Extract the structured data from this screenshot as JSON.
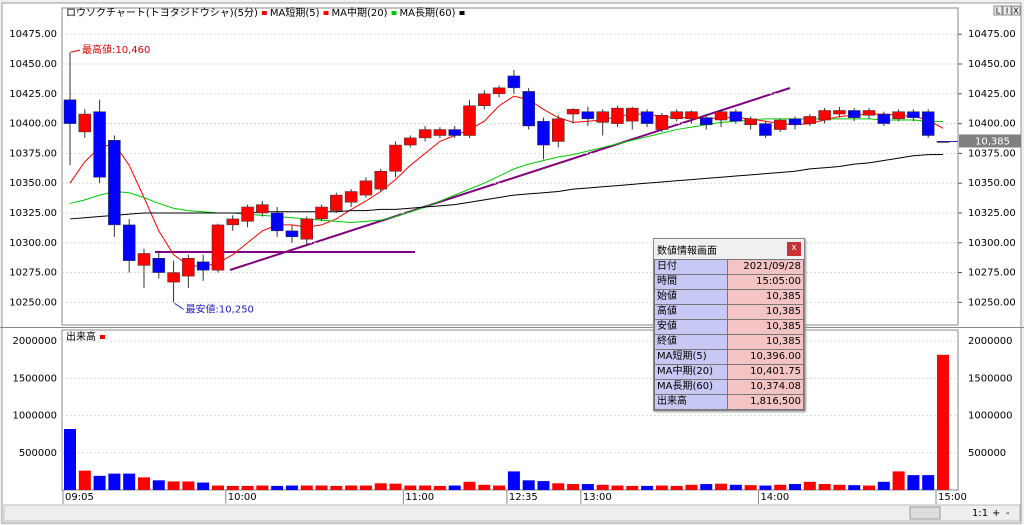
{
  "chart_data": [
    {
      "type": "candlestick",
      "title": "ロウソクチャート(トヨタジドウシャ)(5分)",
      "categories": [
        "09:05",
        null,
        null,
        null,
        null,
        null,
        null,
        null,
        null,
        null,
        null,
        "10:00",
        null,
        null,
        null,
        null,
        null,
        null,
        null,
        null,
        null,
        null,
        null,
        "11:00",
        null,
        null,
        null,
        null,
        null,
        null,
        "12:35",
        null,
        null,
        null,
        null,
        "13:00",
        null,
        null,
        null,
        null,
        null,
        null,
        null,
        null,
        null,
        null,
        null,
        "14:00",
        null,
        null,
        null,
        null,
        null,
        null,
        null,
        null,
        null,
        null,
        null,
        "15:00"
      ],
      "open": [
        10420,
        10393,
        10410,
        10386,
        10315,
        10281,
        10287,
        10267,
        10272,
        10284,
        10277,
        10315,
        10318,
        10325,
        10325,
        10310,
        10303,
        10320,
        10327,
        10334,
        10340,
        10345,
        10360,
        10382,
        10388,
        10390,
        10395,
        10390,
        10415,
        10425,
        10440,
        10427,
        10402,
        10385,
        10408,
        10410,
        10401,
        10400,
        10402,
        10410,
        10395,
        10404,
        10404,
        10405,
        10403,
        10410,
        10399,
        10400,
        10395,
        10404,
        10400,
        10403,
        10408,
        10411,
        10407,
        10408,
        10404,
        10410,
        10410,
        10385
      ],
      "high": [
        10460,
        10412,
        10420,
        10390,
        10320,
        10295,
        10293,
        10285,
        10290,
        10290,
        10316,
        10323,
        10332,
        10335,
        10330,
        10315,
        10322,
        10332,
        10342,
        10345,
        10355,
        10362,
        10385,
        10390,
        10398,
        10397,
        10398,
        10420,
        10428,
        10432,
        10445,
        10430,
        10405,
        10407,
        10413,
        10414,
        10412,
        10415,
        10414,
        10412,
        10409,
        10412,
        10411,
        10408,
        10412,
        10412,
        10406,
        10402,
        10404,
        10406,
        10408,
        10413,
        10414,
        10413,
        10413,
        10410,
        10412,
        10412,
        10412,
        10385
      ],
      "low": [
        10365,
        10388,
        10350,
        10305,
        10275,
        10262,
        10270,
        10250,
        10262,
        10268,
        10275,
        10310,
        10313,
        10322,
        10305,
        10300,
        10297,
        10318,
        10325,
        10330,
        10338,
        10343,
        10355,
        10380,
        10385,
        10388,
        10388,
        10388,
        10412,
        10422,
        10425,
        10395,
        10370,
        10380,
        10400,
        10398,
        10390,
        10397,
        10395,
        10397,
        10393,
        10402,
        10400,
        10395,
        10397,
        10400,
        10395,
        10388,
        10393,
        10395,
        10398,
        10400,
        10405,
        10402,
        10404,
        10398,
        10402,
        10402,
        10388,
        10385
      ],
      "close": [
        10400,
        10408,
        10355,
        10315,
        10285,
        10291,
        10275,
        10275,
        10287,
        10277,
        10315,
        10320,
        10330,
        10332,
        10310,
        10305,
        10320,
        10330,
        10340,
        10343,
        10352,
        10360,
        10382,
        10388,
        10395,
        10395,
        10390,
        10415,
        10425,
        10430,
        10430,
        10398,
        10382,
        10404,
        10412,
        10404,
        10410,
        10413,
        10413,
        10400,
        10407,
        10410,
        10410,
        10399,
        10410,
        10402,
        10404,
        10390,
        10403,
        10399,
        10406,
        10411,
        10411,
        10405,
        10411,
        10400,
        10410,
        10405,
        10390,
        10385
      ],
      "up_color": "#ff0000",
      "down_color": "#0000ff",
      "series": [
        {
          "name": "MA短期(5)",
          "color": "#ff0000",
          "values": [
            10350,
            10368,
            10380,
            10383,
            10365,
            10338,
            10310,
            10290,
            10281,
            10280,
            10283,
            10290,
            10300,
            10310,
            10315,
            10315,
            10313,
            10315,
            10320,
            10328,
            10335,
            10343,
            10353,
            10365,
            10375,
            10385,
            10390,
            10395,
            10402,
            10415,
            10423,
            10420,
            10412,
            10405,
            10401,
            10402,
            10403,
            10406,
            10408,
            10408,
            10406,
            10405,
            10405,
            10404,
            10405,
            10405,
            10404,
            10402,
            10400,
            10399,
            10400,
            10403,
            10406,
            10407,
            10408,
            10408,
            10407,
            10406,
            10403,
            10396
          ]
        },
        {
          "name": "MA中期(20)",
          "color": "#00c800",
          "values": [
            10333,
            10336,
            10340,
            10343,
            10342,
            10338,
            10333,
            10329,
            10327,
            10326,
            10325,
            10325,
            10324,
            10323,
            10322,
            10321,
            10320,
            10319,
            10318,
            10317,
            10318,
            10319,
            10322,
            10326,
            10330,
            10335,
            10340,
            10345,
            10350,
            10356,
            10362,
            10366,
            10369,
            10372,
            10374,
            10377,
            10380,
            10383,
            10386,
            10389,
            10392,
            10395,
            10397,
            10399,
            10401,
            10402,
            10403,
            10404,
            10404,
            10404,
            10404,
            10404,
            10404,
            10404,
            10404,
            10403,
            10403,
            10403,
            10402,
            10401.75
          ]
        },
        {
          "name": "MA長期(60)",
          "color": "#000000",
          "values": [
            10320,
            10321,
            10322,
            10323,
            10324,
            10325,
            10325,
            10325,
            10325,
            10325,
            10325,
            10325,
            10325,
            10326,
            10326,
            10326,
            10326,
            10326,
            10326,
            10327,
            10327,
            10328,
            10328,
            10329,
            10330,
            10331,
            10332,
            10334,
            10336,
            10338,
            10340,
            10341,
            10342,
            10343,
            10345,
            10346,
            10347,
            10348,
            10349,
            10350,
            10351,
            10352,
            10353,
            10354,
            10355,
            10356,
            10357,
            10358,
            10359,
            10360,
            10362,
            10363,
            10364,
            10366,
            10367,
            10369,
            10371,
            10373,
            10374,
            10374.08
          ]
        }
      ],
      "ylim": [
        10231,
        10497
      ],
      "yticks": [
        {
          "value": 10250,
          "label": "10250.00"
        },
        {
          "value": 10275,
          "label": "10275.00"
        },
        {
          "value": 10300,
          "label": "10300.00"
        },
        {
          "value": 10325,
          "label": "10325.00"
        },
        {
          "value": 10350,
          "label": "10350.00"
        },
        {
          "value": 10375,
          "label": "10375.00"
        },
        {
          "value": 10400,
          "label": "10400.00"
        },
        {
          "value": 10425,
          "label": "10425.00"
        },
        {
          "value": 10450,
          "label": "10450.00"
        },
        {
          "value": 10475,
          "label": "10475.00"
        }
      ],
      "high_annotation": {
        "value": 10460,
        "label": "最高値:10,460"
      },
      "low_annotation": {
        "value": 10250,
        "label": "最安値:10,250"
      },
      "last_price": {
        "value": 10385,
        "label": "10,385"
      }
    },
    {
      "type": "bar",
      "title": "出来高",
      "values": [
        820000,
        260000,
        190000,
        220000,
        220000,
        170000,
        130000,
        115000,
        115000,
        100000,
        60000,
        55000,
        55000,
        60000,
        55000,
        60000,
        60000,
        60000,
        55000,
        60000,
        60000,
        90000,
        85000,
        60000,
        60000,
        55000,
        60000,
        110000,
        70000,
        60000,
        250000,
        130000,
        120000,
        90000,
        80000,
        80000,
        70000,
        60000,
        55000,
        55000,
        60000,
        55000,
        70000,
        80000,
        85000,
        70000,
        65000,
        60000,
        70000,
        80000,
        110000,
        80000,
        70000,
        65000,
        60000,
        110000,
        250000,
        200000,
        200000,
        1816500
      ],
      "ylim": [
        0,
        2150000
      ],
      "yticks": [
        500000,
        1000000,
        1500000,
        2000000
      ]
    }
  ],
  "info_panel": {
    "title": "数値情報画面",
    "close": "x",
    "rows": [
      [
        "日付",
        "2021/09/28"
      ],
      [
        "時間",
        "15:05:00"
      ],
      [
        "始値",
        "10,385"
      ],
      [
        "高値",
        "10,385"
      ],
      [
        "安値",
        "10,385"
      ],
      [
        "終値",
        "10,385"
      ],
      [
        "MA短期(5)",
        "10,396.00"
      ],
      [
        "MA中期(20)",
        "10,401.75"
      ],
      [
        "MA長期(60)",
        "10,374.08"
      ],
      [
        "出来高",
        "1,816,500"
      ]
    ]
  },
  "ui": {
    "window_buttons": [
      "L",
      "I",
      "X"
    ],
    "zoom_label": "1:1",
    "zoom_in": "+",
    "zoom_out": "-"
  }
}
